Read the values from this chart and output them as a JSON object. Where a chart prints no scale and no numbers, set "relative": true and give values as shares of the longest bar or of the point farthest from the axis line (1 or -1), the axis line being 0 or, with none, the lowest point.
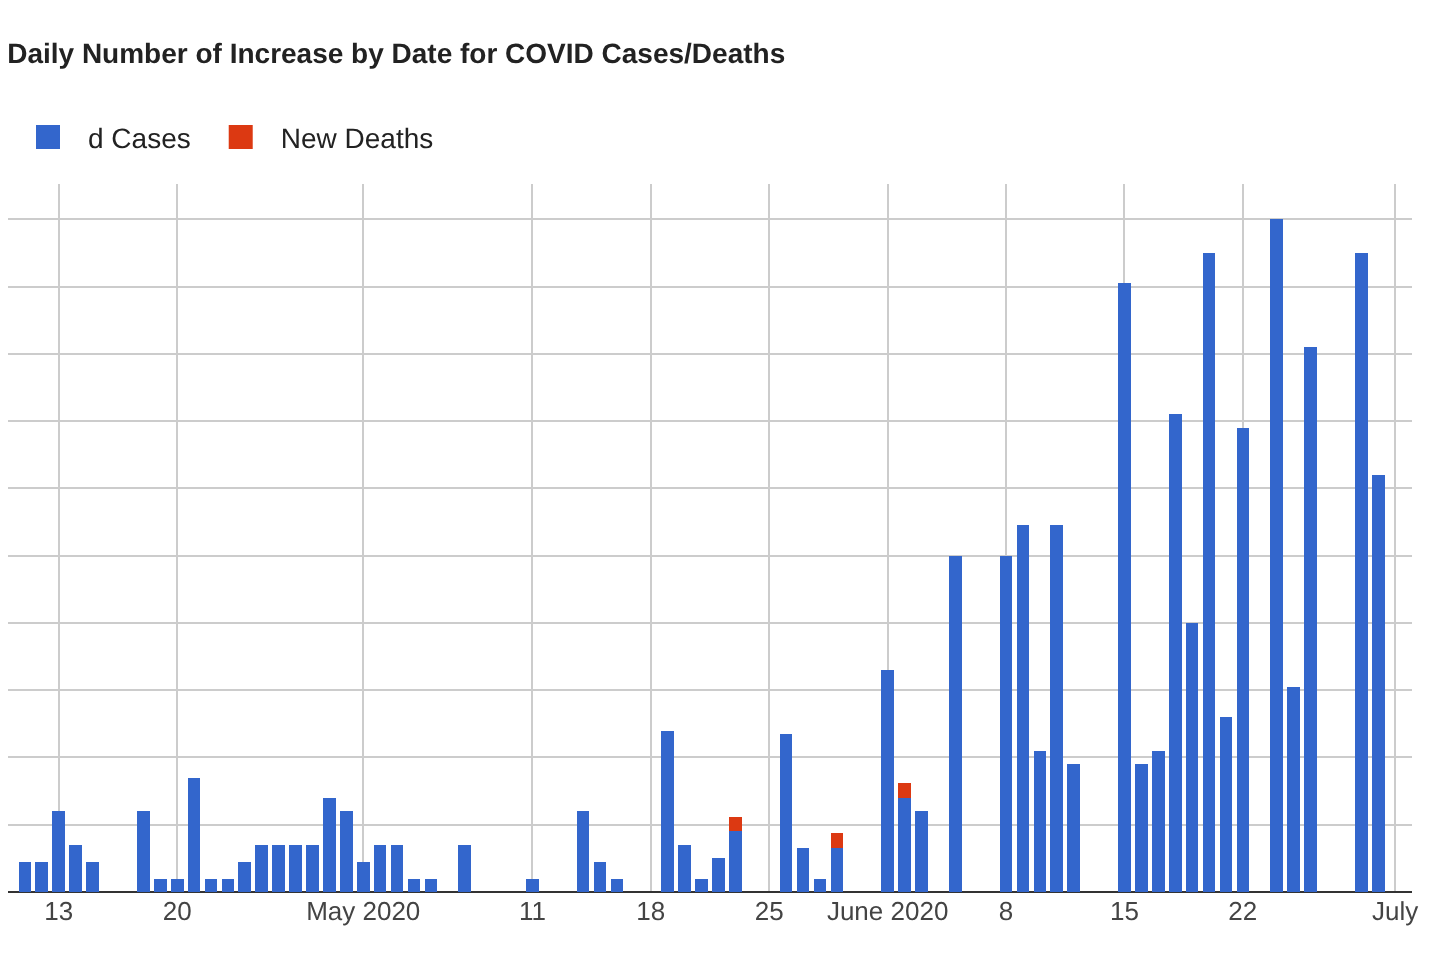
{
  "chart_data": {
    "type": "bar",
    "title": "Daily Number of Increase by Date for COVID Cases/Deaths",
    "relative": true,
    "stacked": true,
    "grid": true,
    "legend": "top left",
    "xlim": [
      "2020-04-10",
      "2020-07-02"
    ],
    "xticks": [
      {
        "value": "2020-04-13",
        "label": "13"
      },
      {
        "value": "2020-04-20",
        "label": "20"
      },
      {
        "value": "2020-05-01",
        "label": "May 2020"
      },
      {
        "value": "2020-05-11",
        "label": "11"
      },
      {
        "value": "2020-05-18",
        "label": "18"
      },
      {
        "value": "2020-05-25",
        "label": "25"
      },
      {
        "value": "2020-06-01",
        "label": "June 2020"
      },
      {
        "value": "2020-06-08",
        "label": "8"
      },
      {
        "value": "2020-06-15",
        "label": "15"
      },
      {
        "value": "2020-06-22",
        "label": "22"
      },
      {
        "value": "2020-07-01",
        "label": "July"
      }
    ],
    "x": [
      "2020-04-11",
      "2020-04-12",
      "2020-04-13",
      "2020-04-14",
      "2020-04-15",
      "2020-04-18",
      "2020-04-19",
      "2020-04-20",
      "2020-04-21",
      "2020-04-22",
      "2020-04-23",
      "2020-04-24",
      "2020-04-25",
      "2020-04-26",
      "2020-04-27",
      "2020-04-28",
      "2020-04-29",
      "2020-04-30",
      "2020-05-01",
      "2020-05-02",
      "2020-05-03",
      "2020-05-04",
      "2020-05-05",
      "2020-05-07",
      "2020-05-11",
      "2020-05-14",
      "2020-05-15",
      "2020-05-16",
      "2020-05-19",
      "2020-05-20",
      "2020-05-21",
      "2020-05-22",
      "2020-05-23",
      "2020-05-26",
      "2020-05-27",
      "2020-05-28",
      "2020-05-29",
      "2020-06-01",
      "2020-06-02",
      "2020-06-03",
      "2020-06-05",
      "2020-06-08",
      "2020-06-09",
      "2020-06-10",
      "2020-06-11",
      "2020-06-12",
      "2020-06-15",
      "2020-06-16",
      "2020-06-17",
      "2020-06-18",
      "2020-06-19",
      "2020-06-20",
      "2020-06-21",
      "2020-06-22",
      "2020-06-24",
      "2020-06-25",
      "2020-06-26",
      "2020-06-29",
      "2020-06-30"
    ],
    "series": [
      {
        "name": "d Cases",
        "color": "#3366cc",
        "values": [
          0.045,
          0.045,
          0.12,
          0.07,
          0.045,
          0.12,
          0.02,
          0.02,
          0.17,
          0.02,
          0.02,
          0.045,
          0.07,
          0.07,
          0.07,
          0.07,
          0.14,
          0.12,
          0.045,
          0.07,
          0.07,
          0.02,
          0.02,
          0.07,
          0.02,
          0.12,
          0.045,
          0.02,
          0.24,
          0.07,
          0.02,
          0.05,
          0.09,
          0.235,
          0.065,
          0.02,
          0.065,
          0.33,
          0.14,
          0.12,
          0.5,
          0.5,
          0.545,
          0.21,
          0.545,
          0.19,
          0.905,
          0.19,
          0.21,
          0.71,
          0.4,
          0.95,
          0.26,
          0.69,
          1,
          0.305,
          0.81,
          0.95,
          0.62
        ]
      },
      {
        "name": "New Deaths",
        "color": "#dc3912",
        "values": [
          null,
          null,
          null,
          null,
          null,
          null,
          null,
          null,
          null,
          null,
          null,
          null,
          null,
          null,
          null,
          null,
          null,
          null,
          null,
          null,
          null,
          null,
          null,
          null,
          null,
          null,
          null,
          null,
          null,
          null,
          null,
          null,
          0.022,
          null,
          null,
          null,
          0.022,
          null,
          0.022,
          null,
          null,
          null,
          null,
          null,
          null,
          null,
          null,
          null,
          null,
          null,
          null,
          null,
          null,
          null,
          null,
          null,
          null,
          null,
          null
        ]
      }
    ]
  }
}
